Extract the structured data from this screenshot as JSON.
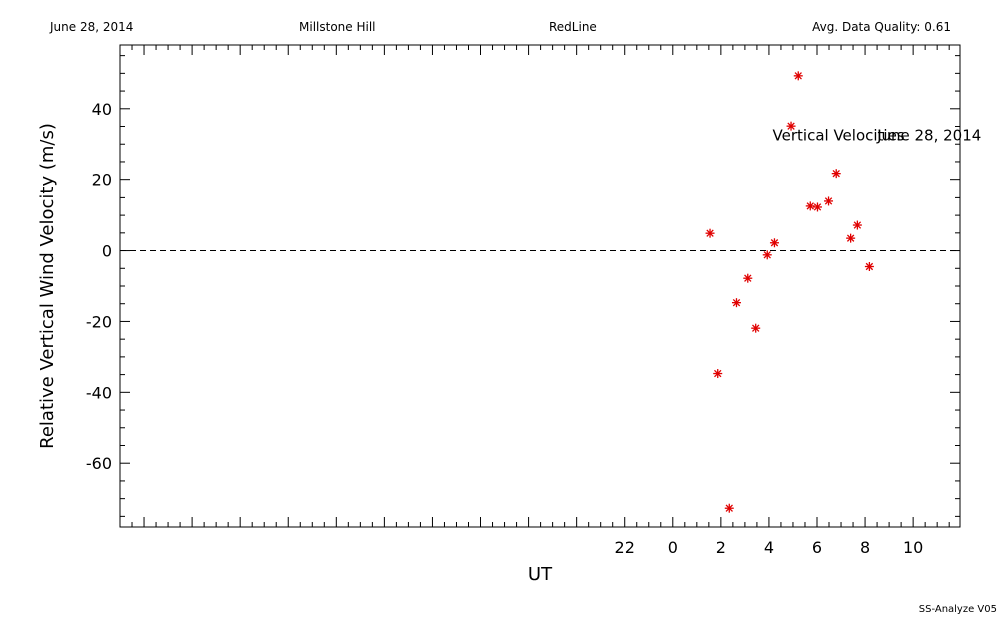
{
  "header": {
    "date": "June 28, 2014",
    "site": "Millstone Hill",
    "instrument": "RedLine",
    "quality": "Avg. Data Quality: 0.61"
  },
  "footer": {
    "software": "SS-Analyze V05"
  },
  "chart_data": {
    "type": "scatter",
    "title": "",
    "xlabel": "UT",
    "ylabel": "Relative Vertical Wind Velocity (m/s)",
    "xlim": [
      -23.0,
      11.95
    ],
    "ylim": [
      -78,
      58
    ],
    "x_ticks": [
      22,
      0,
      2,
      4,
      6,
      8,
      10
    ],
    "x_tick_values": [
      -2,
      0,
      2,
      4,
      6,
      8,
      10
    ],
    "y_ticks": [
      40,
      20,
      0,
      -20,
      -40,
      -60
    ],
    "y_tick_values": [
      40,
      20,
      0,
      -20,
      -40,
      -60
    ],
    "reference_line": {
      "y": 0,
      "style": "dashed"
    },
    "marker_color": "#e00000",
    "marker": "asterisk",
    "annotations": [
      {
        "text": "Vertical Velocities",
        "x": 4.15,
        "y": 31
      },
      {
        "text": "June 28, 2014",
        "x": 8.5,
        "y": 31
      }
    ],
    "series": [
      {
        "points": [
          {
            "x": 1.55,
            "y": 4.9
          },
          {
            "x": 1.87,
            "y": -34.7
          },
          {
            "x": 2.35,
            "y": -72.7
          },
          {
            "x": 2.65,
            "y": -14.7
          },
          {
            "x": 3.12,
            "y": -7.8
          },
          {
            "x": 3.45,
            "y": -21.9
          },
          {
            "x": 3.93,
            "y": -1.2
          },
          {
            "x": 4.23,
            "y": 2.2
          },
          {
            "x": 4.92,
            "y": 35.1
          },
          {
            "x": 5.22,
            "y": 49.3
          },
          {
            "x": 5.72,
            "y": 12.6
          },
          {
            "x": 6.02,
            "y": 12.3
          },
          {
            "x": 6.48,
            "y": 14.0
          },
          {
            "x": 6.8,
            "y": 21.7
          },
          {
            "x": 7.4,
            "y": 3.5
          },
          {
            "x": 7.68,
            "y": 7.2
          },
          {
            "x": 8.18,
            "y": -4.5
          }
        ]
      }
    ]
  }
}
